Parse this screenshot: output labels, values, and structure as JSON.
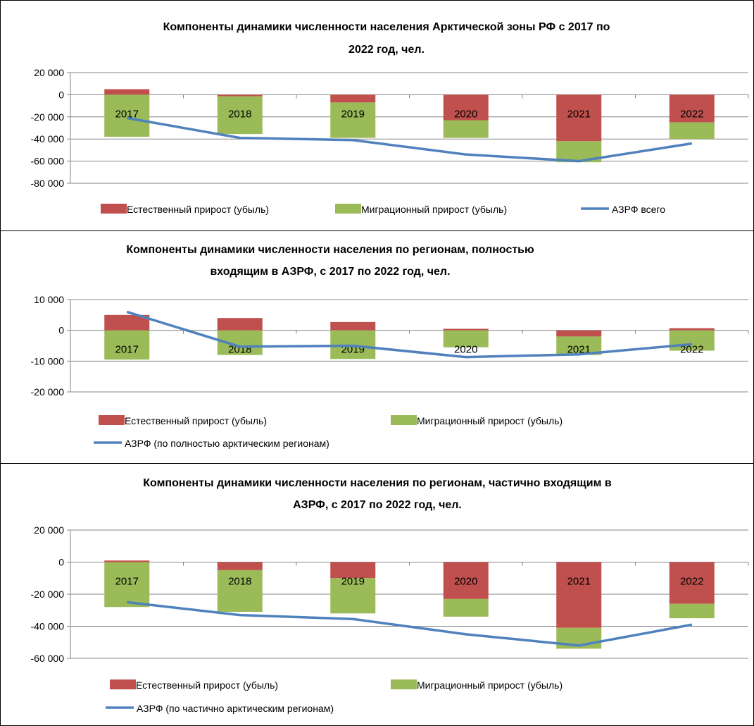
{
  "chart_data": [
    {
      "type": "bar",
      "title_lines": [
        "Компоненты динамики численности населения Арктической зоны РФ с 2017 по",
        "2022 год, чел."
      ],
      "categories": [
        "2017",
        "2018",
        "2019",
        "2020",
        "2021",
        "2022"
      ],
      "yticks": [
        "20 000",
        "0",
        "-20 000",
        "-40 000",
        "-60 000",
        "-80 000"
      ],
      "ylim": [
        -80000,
        20000
      ],
      "stacked": true,
      "series": [
        {
          "name": "Естественный прирост (убыль)",
          "type": "bar",
          "color": "#c0504d",
          "values": [
            5000,
            -1500,
            -7000,
            -23000,
            -42000,
            -25000
          ]
        },
        {
          "name": "Миграционный прирост (убыль)",
          "type": "bar",
          "color": "#9bbb59",
          "values": [
            -38000,
            -34000,
            -32000,
            -16000,
            -19000,
            -15000
          ]
        },
        {
          "name": "АЗРФ всего",
          "type": "line",
          "color": "#4f81bd",
          "values": [
            -21000,
            -39000,
            -41000,
            -54000,
            -60000,
            -44000
          ]
        }
      ],
      "legend": "bottom"
    },
    {
      "type": "bar",
      "title_lines": [
        "Компоненты динамики численности населения по регионам, полностью",
        "входящим в АЗРФ, с 2017 по 2022 год, чел."
      ],
      "categories": [
        "2017",
        "2018",
        "2019",
        "2020",
        "2021",
        "2022"
      ],
      "yticks": [
        "10 000",
        "0",
        "-10 000",
        "-20 000"
      ],
      "ylim": [
        -20000,
        10000
      ],
      "stacked": true,
      "series": [
        {
          "name": "Естественный прирост (убыль)",
          "type": "bar",
          "color": "#c0504d",
          "values": [
            5000,
            4000,
            2700,
            500,
            -2000,
            700
          ]
        },
        {
          "name": "Миграционный прирост (убыль)",
          "type": "bar",
          "color": "#9bbb59",
          "values": [
            -9500,
            -8000,
            -9300,
            -5500,
            -6000,
            -6600
          ]
        },
        {
          "name": "АЗРФ (по полностью арктическим регионам)",
          "type": "line",
          "color": "#4f81bd",
          "values": [
            6000,
            -5300,
            -5000,
            -8700,
            -7800,
            -4500
          ]
        }
      ],
      "legend": "bottom"
    },
    {
      "type": "bar",
      "title_lines": [
        "Компоненты динамики численности населения по регионам, частично входящим в",
        "АЗРФ, с 2017 по 2022 год, чел."
      ],
      "categories": [
        "2017",
        "2018",
        "2019",
        "2020",
        "2021",
        "2022"
      ],
      "yticks": [
        "20 000",
        "0",
        "-20 000",
        "-40 000",
        "-60 000"
      ],
      "ylim": [
        -60000,
        20000
      ],
      "stacked": true,
      "series": [
        {
          "name": "Естественный прирост (убыль)",
          "type": "bar",
          "color": "#c0504d",
          "values": [
            1000,
            -5000,
            -10000,
            -23000,
            -41000,
            -26000
          ]
        },
        {
          "name": "Миграционный прирост (убыль)",
          "type": "bar",
          "color": "#9bbb59",
          "values": [
            -28000,
            -26000,
            -22000,
            -11000,
            -13000,
            -9000
          ]
        },
        {
          "name": "АЗРФ (по частично арктическим регионам)",
          "type": "line",
          "color": "#4f81bd",
          "values": [
            -25000,
            -33000,
            -35500,
            -45000,
            -52000,
            -39000
          ]
        }
      ],
      "legend": "bottom"
    }
  ]
}
